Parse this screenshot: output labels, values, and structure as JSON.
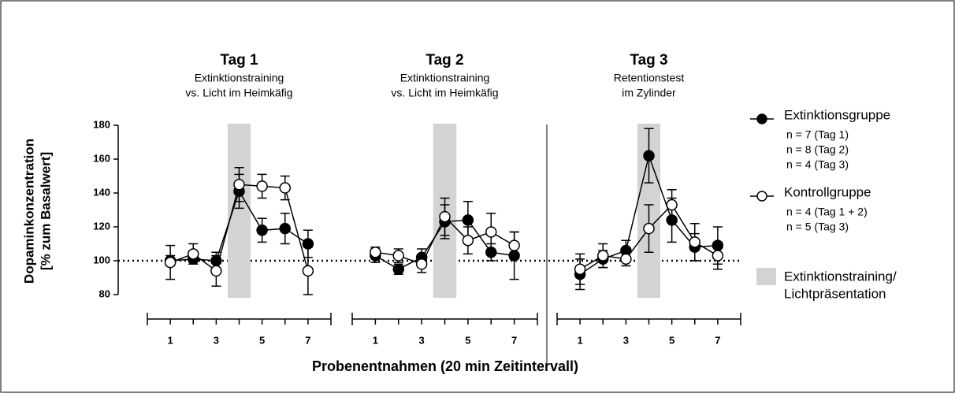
{
  "axes": {
    "ylabel": [
      "Dopaminkonzentration",
      "[% zum Basalwert]"
    ],
    "xlabel": "Probenentnahmen (20 min Zeitintervall)",
    "ylim": [
      80,
      180
    ],
    "yticks": [
      80,
      100,
      120,
      140,
      160,
      180
    ],
    "reference": 100
  },
  "legend": [
    {
      "name": "Extinktionsgruppe",
      "fill": "#000",
      "details": [
        "n = 7 (Tag 1)",
        "n = 8 (Tag 2)",
        "n = 4 (Tag 3)"
      ]
    },
    {
      "name": "Kontrollgruppe",
      "fill": "#fff",
      "details": [
        "n = 4 (Tag 1 + 2)",
        "n = 5 (Tag 3)"
      ]
    },
    {
      "name": [
        "Extinktionstraining/",
        "Lichtpräsentation"
      ],
      "color": "#d3d3d3"
    }
  ],
  "chart_data": [
    {
      "type": "line",
      "title": "Tag 1",
      "subtitle": [
        "Extinktionstraining",
        "vs. Licht im Heimkäfig"
      ],
      "x": [
        1,
        2,
        3,
        4,
        5,
        6,
        7
      ],
      "xlim": [
        0,
        8
      ],
      "xticks": [
        1,
        3,
        5,
        7
      ],
      "shade": [
        3.5,
        4.5
      ],
      "series": [
        {
          "fill": "#000",
          "values": [
            100,
            101,
            100,
            141,
            118,
            119,
            110
          ],
          "errors": [
            3,
            3,
            5,
            10,
            7,
            9,
            8
          ]
        },
        {
          "fill": "#fff",
          "values": [
            99,
            104,
            94,
            145,
            144,
            143,
            94
          ],
          "errors": [
            10,
            6,
            9,
            10,
            7,
            7,
            14
          ]
        }
      ]
    },
    {
      "type": "line",
      "title": "Tag 2",
      "subtitle": [
        "Extinktionstraining",
        "vs. Licht im Heimkäfig"
      ],
      "x": [
        1,
        2,
        3,
        4,
        5,
        6,
        7
      ],
      "xlim": [
        0,
        8
      ],
      "xticks": [
        1,
        3,
        5,
        7
      ],
      "shade": [
        3.5,
        4.5
      ],
      "series": [
        {
          "fill": "#000",
          "values": [
            103,
            95,
            102,
            123,
            124,
            105,
            103
          ],
          "errors": [
            4,
            3,
            5,
            10,
            11,
            5,
            14
          ]
        },
        {
          "fill": "#fff",
          "values": [
            105,
            103,
            98,
            126,
            112,
            117,
            109
          ],
          "errors": [
            3,
            4,
            5,
            11,
            8,
            11,
            8
          ]
        }
      ]
    },
    {
      "type": "line",
      "title": "Tag 3",
      "subtitle": [
        "Retentionstest",
        "im Zylinder"
      ],
      "x": [
        1,
        2,
        3,
        4,
        5,
        6,
        7
      ],
      "xlim": [
        0,
        8
      ],
      "xticks": [
        1,
        3,
        5,
        7
      ],
      "shade": [
        3.5,
        4.5
      ],
      "series": [
        {
          "fill": "#000",
          "values": [
            92,
            101,
            106,
            162,
            124,
            108,
            109
          ],
          "errors": [
            9,
            5,
            6,
            16,
            13,
            8,
            11
          ]
        },
        {
          "fill": "#fff",
          "values": [
            95,
            103,
            101,
            119,
            133,
            111,
            103
          ],
          "errors": [
            9,
            7,
            4,
            14,
            9,
            11,
            8
          ]
        }
      ]
    }
  ]
}
